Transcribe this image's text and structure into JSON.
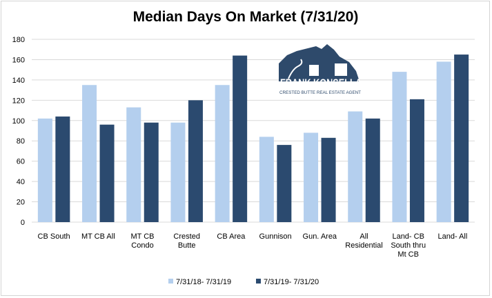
{
  "chart_data": {
    "type": "bar",
    "title": "Median Days On Market (7/31/20)",
    "xlabel": "",
    "ylabel": "",
    "ylim": [
      0,
      180
    ],
    "yticks": [
      0,
      20,
      40,
      60,
      80,
      100,
      120,
      140,
      160,
      180
    ],
    "grid": true,
    "legend_position": "bottom",
    "categories": [
      [
        "CB South"
      ],
      [
        "MT CB All"
      ],
      [
        "MT CB",
        "Condo"
      ],
      [
        "Crested",
        "Butte"
      ],
      [
        "CB Area"
      ],
      [
        "Gunnison"
      ],
      [
        "Gun. Area"
      ],
      [
        "All",
        "Residential"
      ],
      [
        "Land- CB",
        "South thru",
        "Mt CB"
      ],
      [
        "Land- All"
      ]
    ],
    "series": [
      {
        "name": "7/31/18- 7/31/19",
        "color": "#b4cfee",
        "values": [
          102,
          135,
          113,
          98,
          135,
          84,
          88,
          109,
          148,
          158
        ]
      },
      {
        "name": "7/31/19- 7/31/20",
        "color": "#2b4a6f",
        "values": [
          104,
          96,
          98,
          120,
          164,
          76,
          83,
          102,
          121,
          165
        ]
      }
    ]
  },
  "logo": {
    "line1": "FRANK KONSELLA",
    "line2": "CRESTED BUTTE REAL ESTATE AGENT",
    "color": "#2e4a6b"
  }
}
